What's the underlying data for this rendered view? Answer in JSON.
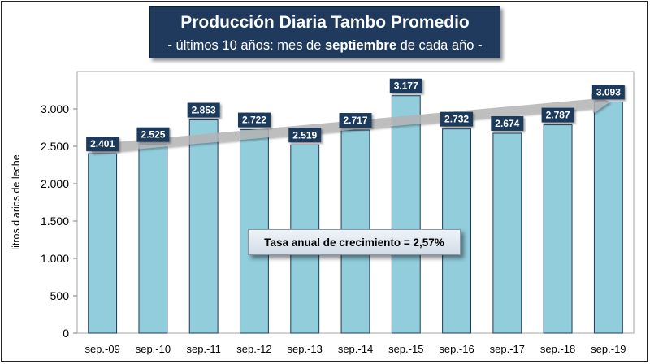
{
  "chart_data": {
    "type": "bar",
    "title": "Producción Diaria Tambo Promedio",
    "subtitle_parts": [
      "- últimos 10 años: mes de ",
      "septiembre",
      " de cada año -"
    ],
    "ylabel": "litros diarios de leche",
    "xlabel": "",
    "categories": [
      "sep.-09",
      "sep.-10",
      "sep.-11",
      "sep.-12",
      "sep.-13",
      "sep.-14",
      "sep.-15",
      "sep.-16",
      "sep.-17",
      "sep.-18",
      "sep.-19"
    ],
    "values": [
      2401,
      2525,
      2853,
      2722,
      2519,
      2717,
      3177,
      2732,
      2674,
      2787,
      3093
    ],
    "data_labels": [
      "2.401",
      "2.525",
      "2.853",
      "2.722",
      "2.519",
      "2.717",
      "3.177",
      "2.732",
      "2.674",
      "2.787",
      "3.093"
    ],
    "ylim": [
      0,
      3500
    ],
    "yticks": [
      0,
      500,
      1000,
      1500,
      2000,
      2500,
      3000
    ],
    "ytick_labels": [
      "0",
      "500",
      "1.000",
      "1.500",
      "2.000",
      "2.500",
      "3.000"
    ],
    "grid": false,
    "annotation": "Tasa anual de crecimiento = 2,57%",
    "trend_arrow": {
      "from_value": 2401,
      "to_value": 3093
    },
    "colors": {
      "bar_fill": "#92cddc",
      "bar_stroke": "#1f3a5c",
      "label_box": "#1f3a5c",
      "title_box": "#1f3a5c",
      "arrow": "#b3b3b3"
    }
  }
}
